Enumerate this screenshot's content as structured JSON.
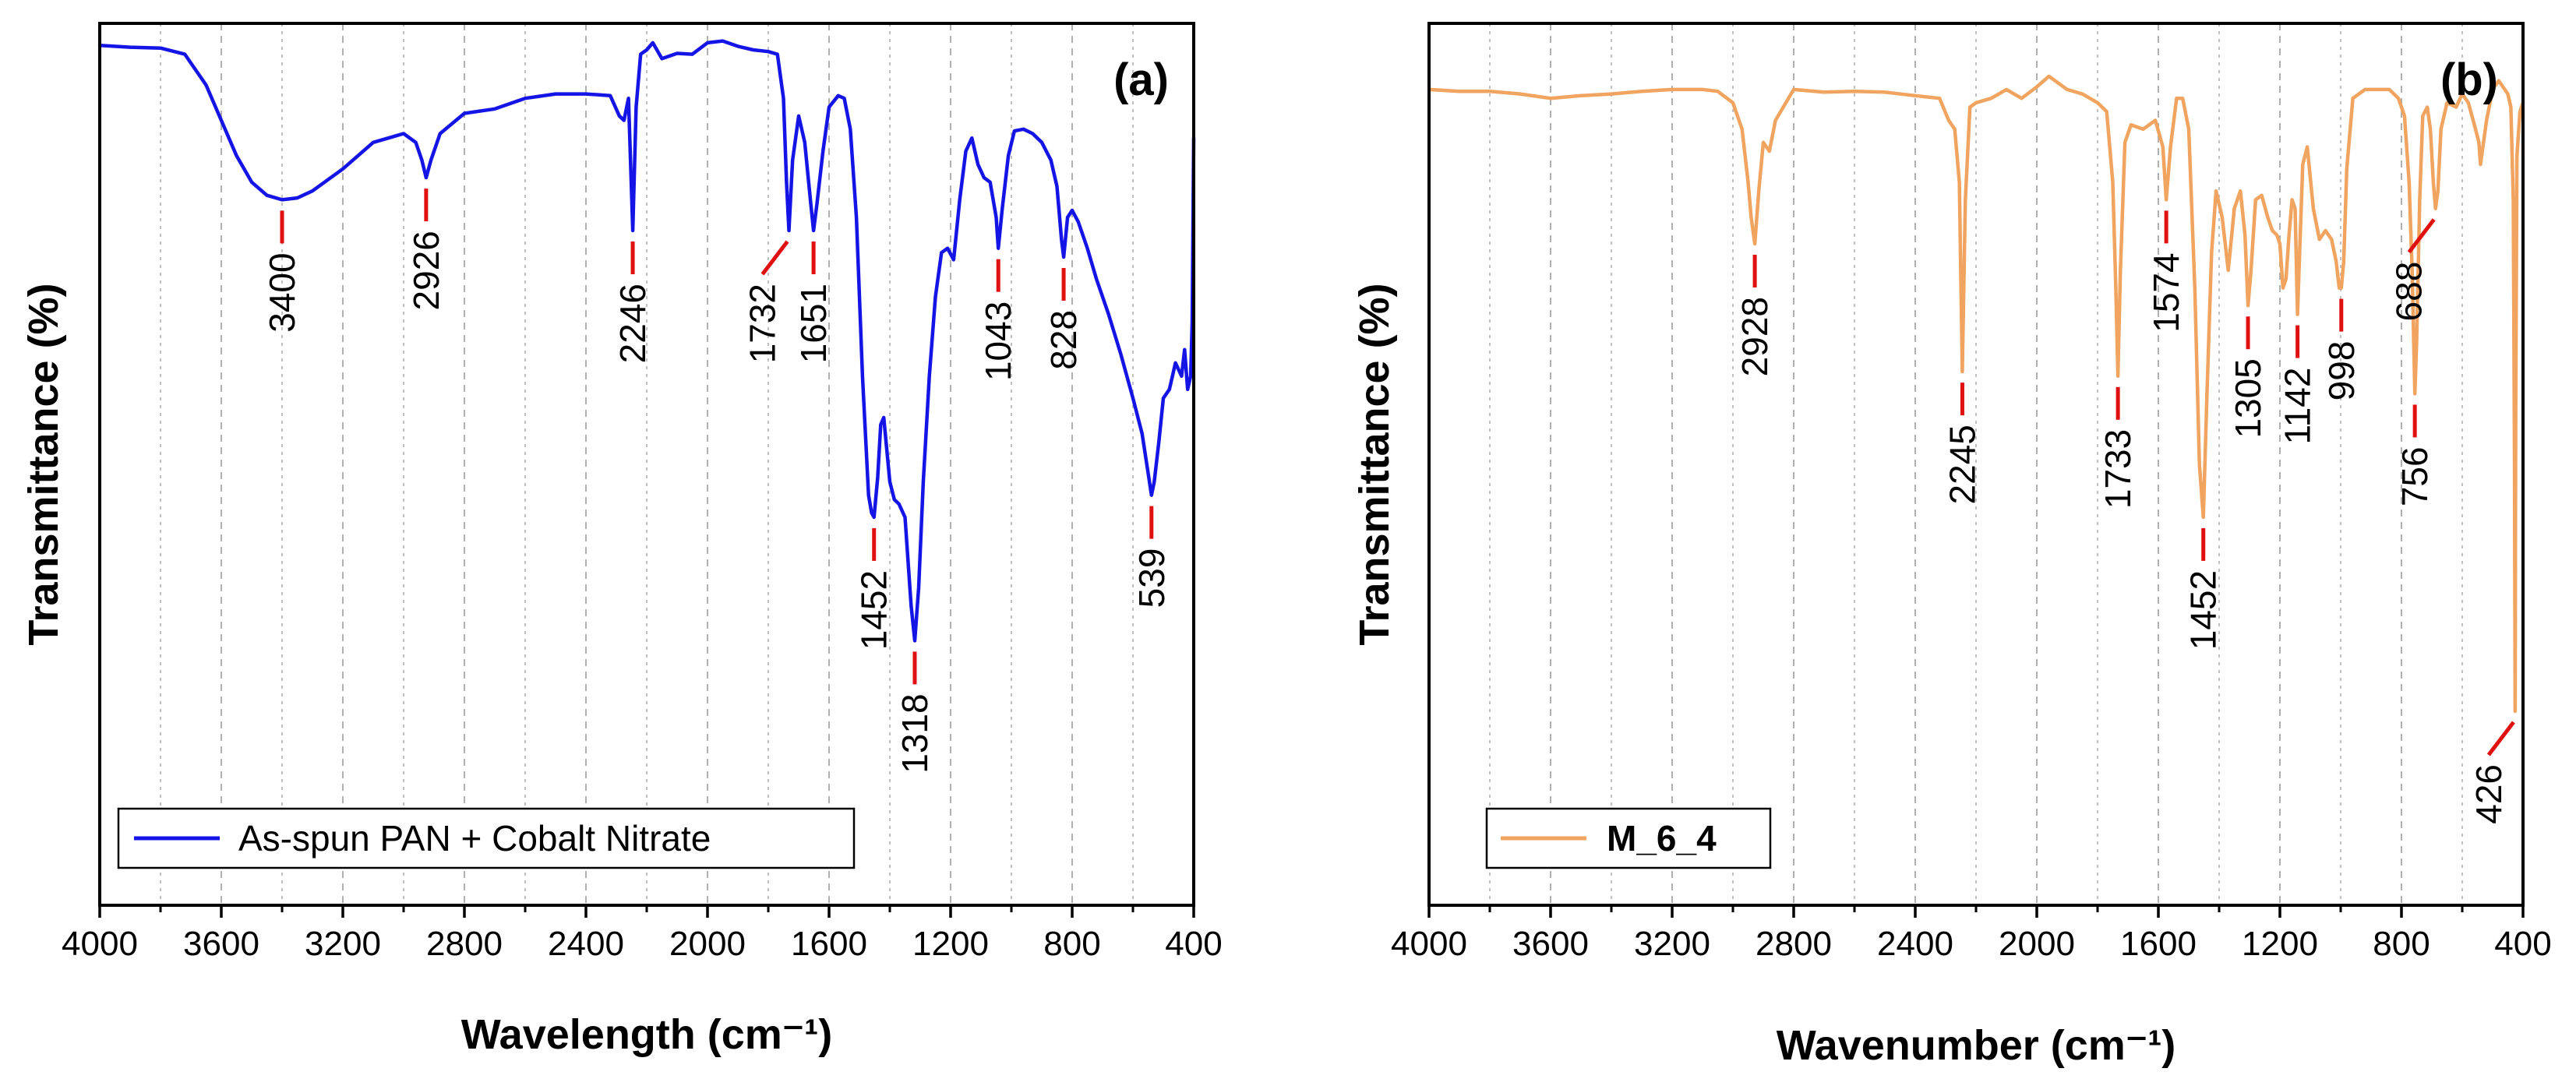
{
  "chart_data": [
    {
      "type": "line",
      "panel_label": "(a)",
      "xlabel": "Wavelength (cm⁻¹)",
      "ylabel": "Transmittance (%)",
      "xlim": [
        4000,
        400
      ],
      "ylim": [
        0,
        100
      ],
      "xticks": [
        4000,
        3600,
        3200,
        2800,
        2400,
        2000,
        1600,
        1200,
        800,
        400
      ],
      "xtick_labels": [
        "4000",
        "3600",
        "3200",
        "2800",
        "2400",
        "2000",
        "1600",
        "1200",
        "800",
        "400"
      ],
      "grid": "vertical dashed",
      "legend_position": "bottom-left",
      "series": [
        {
          "name": "As-spun PAN + Cobalt Nitrate",
          "color": "#1414e6",
          "x": [
            4000,
            3900,
            3800,
            3720,
            3650,
            3600,
            3550,
            3500,
            3450,
            3400,
            3350,
            3300,
            3200,
            3100,
            3000,
            2960,
            2940,
            2926,
            2910,
            2880,
            2800,
            2700,
            2600,
            2500,
            2400,
            2320,
            2290,
            2275,
            2260,
            2246,
            2235,
            2220,
            2200,
            2180,
            2150,
            2100,
            2050,
            2000,
            1950,
            1900,
            1850,
            1800,
            1770,
            1750,
            1740,
            1732,
            1720,
            1700,
            1680,
            1660,
            1651,
            1640,
            1620,
            1600,
            1570,
            1550,
            1530,
            1510,
            1490,
            1470,
            1460,
            1452,
            1440,
            1430,
            1420,
            1400,
            1385,
            1370,
            1350,
            1330,
            1318,
            1305,
            1290,
            1270,
            1250,
            1230,
            1210,
            1190,
            1170,
            1150,
            1130,
            1110,
            1090,
            1070,
            1050,
            1043,
            1030,
            1010,
            990,
            960,
            930,
            900,
            870,
            850,
            835,
            828,
            815,
            800,
            780,
            750,
            720,
            680,
            640,
            600,
            570,
            550,
            539,
            530,
            515,
            500,
            480,
            460,
            440,
            430,
            420,
            410,
            405,
            400
          ],
          "y": [
            97.5,
            97.3,
            97.2,
            96.5,
            93,
            89,
            85,
            82,
            80.5,
            80,
            80.2,
            81,
            83.5,
            86.5,
            87.5,
            86.5,
            84.5,
            82.5,
            84.5,
            87.5,
            89.8,
            90.3,
            91.5,
            92,
            92,
            91.8,
            89.5,
            89,
            91.5,
            76.5,
            90.5,
            96.5,
            97,
            97.8,
            96,
            96.6,
            96.5,
            97.8,
            98,
            97.4,
            97,
            96.8,
            96.5,
            91.5,
            82,
            76.5,
            84.5,
            89.5,
            86.5,
            79.5,
            76.5,
            79.5,
            85.5,
            90.5,
            91.8,
            91.5,
            88,
            78,
            60,
            46.5,
            44.5,
            44,
            48.5,
            54.5,
            55.3,
            48,
            46,
            45.5,
            44,
            34,
            30,
            36,
            48,
            60,
            69,
            74,
            74.5,
            73.2,
            80,
            85.5,
            87,
            84,
            82.5,
            82,
            78,
            74.5,
            79,
            85,
            87.8,
            88,
            87.5,
            86.5,
            84.5,
            81.5,
            75.5,
            73.5,
            78,
            78.8,
            77.5,
            74.5,
            71,
            67,
            62.5,
            57.5,
            53.5,
            49,
            46.5,
            48,
            52.5,
            57.5,
            58.5,
            61.5,
            60,
            63,
            58.5,
            60,
            66,
            87
          ]
        }
      ],
      "annotations": [
        {
          "label": "3400",
          "x": 3400
        },
        {
          "label": "2926",
          "x": 2926
        },
        {
          "label": "2246",
          "x": 2246
        },
        {
          "label": "1732",
          "x": 1732
        },
        {
          "label": "1651",
          "x": 1651
        },
        {
          "label": "1452",
          "x": 1452
        },
        {
          "label": "1318",
          "x": 1318
        },
        {
          "label": "1043",
          "x": 1043
        },
        {
          "label": "828",
          "x": 828
        },
        {
          "label": "539",
          "x": 539
        }
      ]
    },
    {
      "type": "line",
      "panel_label": "(b)",
      "xlabel": "Wavenumber (cm⁻¹)",
      "ylabel": "Transmittance (%)",
      "xlim": [
        4000,
        400
      ],
      "ylim": [
        0,
        100
      ],
      "xticks": [
        4000,
        3600,
        3200,
        2800,
        2400,
        2000,
        1600,
        1200,
        800,
        400
      ],
      "xtick_labels": [
        "4000",
        "3600",
        "3200",
        "2800",
        "2400",
        "2000",
        "1600",
        "1200",
        "800",
        "400"
      ],
      "grid": "vertical dashed",
      "legend_position": "bottom-left",
      "series": [
        {
          "name": "M_6_4",
          "color": "#f0a460",
          "x": [
            4000,
            3900,
            3800,
            3700,
            3600,
            3500,
            3400,
            3300,
            3200,
            3100,
            3050,
            3000,
            2970,
            2950,
            2940,
            2928,
            2915,
            2900,
            2880,
            2860,
            2800,
            2700,
            2600,
            2500,
            2400,
            2320,
            2290,
            2270,
            2255,
            2245,
            2235,
            2220,
            2200,
            2150,
            2100,
            2050,
            2000,
            1960,
            1900,
            1850,
            1800,
            1770,
            1750,
            1740,
            1733,
            1725,
            1710,
            1690,
            1650,
            1610,
            1585,
            1574,
            1560,
            1540,
            1520,
            1500,
            1480,
            1465,
            1452,
            1440,
            1425,
            1410,
            1390,
            1370,
            1350,
            1330,
            1315,
            1305,
            1295,
            1280,
            1260,
            1240,
            1225,
            1210,
            1200,
            1190,
            1180,
            1170,
            1160,
            1150,
            1142,
            1135,
            1125,
            1110,
            1090,
            1070,
            1050,
            1030,
            1015,
            1005,
            998,
            990,
            980,
            960,
            920,
            880,
            840,
            810,
            790,
            775,
            765,
            756,
            750,
            740,
            730,
            715,
            705,
            695,
            688,
            680,
            670,
            650,
            620,
            600,
            580,
            560,
            545,
            540,
            520,
            500,
            480,
            460,
            450,
            440,
            432,
            428,
            426,
            424,
            420,
            410,
            400
          ],
          "y": [
            92.5,
            92.3,
            92.3,
            92,
            91.5,
            91.8,
            92,
            92.3,
            92.5,
            92.5,
            92.3,
            91,
            88,
            82,
            78,
            75,
            81,
            86.5,
            85.5,
            89,
            92.5,
            92.2,
            92.3,
            92.2,
            91.8,
            91.5,
            89,
            88,
            82,
            60.5,
            80,
            90.5,
            91,
            91.5,
            92.5,
            91.5,
            92.8,
            94,
            92.5,
            92,
            91,
            90,
            82,
            70,
            60,
            72,
            86.5,
            88.5,
            88,
            89,
            86,
            80,
            86,
            91.5,
            91.5,
            88,
            70,
            50,
            44,
            58,
            74,
            81,
            78,
            72,
            79,
            81,
            76,
            68,
            72,
            80,
            80.5,
            78,
            76.5,
            76,
            75,
            70,
            71,
            76,
            80,
            79,
            67,
            74,
            84,
            86,
            79,
            75.5,
            76.5,
            75.5,
            73,
            70,
            70,
            73,
            83.5,
            91.5,
            92.5,
            92.5,
            92.5,
            91.5,
            89.5,
            82,
            72,
            58,
            64,
            80,
            89.5,
            90.5,
            88,
            82,
            79,
            81,
            88,
            91,
            90.5,
            92,
            91,
            88.5,
            86.5,
            84,
            89,
            92.5,
            93.5,
            92.5,
            92,
            90.5,
            80,
            50,
            22,
            55,
            85,
            90,
            91
          ]
        }
      ],
      "annotations": [
        {
          "label": "2928",
          "x": 2928
        },
        {
          "label": "2245",
          "x": 2245
        },
        {
          "label": "1733",
          "x": 1733
        },
        {
          "label": "1574",
          "x": 1574
        },
        {
          "label": "1452",
          "x": 1452
        },
        {
          "label": "1305",
          "x": 1305
        },
        {
          "label": "1142",
          "x": 1142
        },
        {
          "label": "998",
          "x": 998
        },
        {
          "label": "756",
          "x": 756
        },
        {
          "label": "688",
          "x": 688
        },
        {
          "label": "426",
          "x": 426
        }
      ]
    }
  ]
}
